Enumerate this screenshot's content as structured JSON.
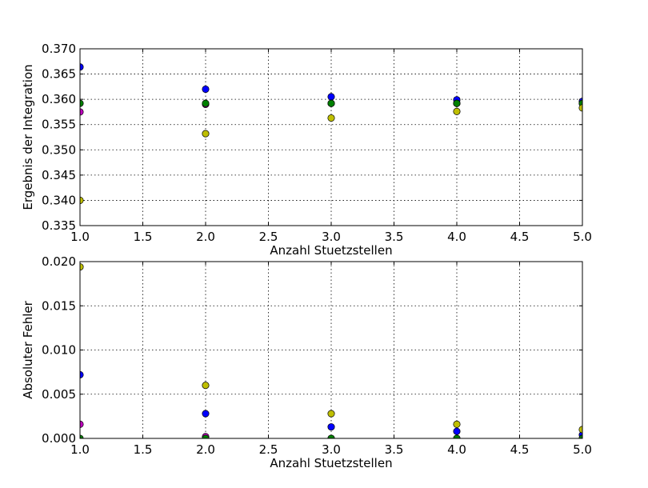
{
  "chart_data": [
    {
      "type": "scatter",
      "title": "",
      "xlabel": "Anzahl Stuetzstellen",
      "ylabel": "Ergebnis der Integration",
      "xlim": [
        1.0,
        5.0
      ],
      "ylim": [
        0.335,
        0.37
      ],
      "xticks": [
        "1.0",
        "1.5",
        "2.0",
        "2.5",
        "3.0",
        "3.5",
        "4.0",
        "4.5",
        "5.0"
      ],
      "yticks": [
        "0.335",
        "0.340",
        "0.345",
        "0.350",
        "0.355",
        "0.360",
        "0.365",
        "0.370"
      ],
      "grid": true,
      "series": [
        {
          "color": "#0000ff",
          "x": [
            1,
            2,
            3,
            4,
            5
          ],
          "y": [
            0.3664,
            0.362,
            0.3605,
            0.3599,
            0.3596
          ]
        },
        {
          "color": "#bf00bf",
          "x": [
            1,
            2,
            3,
            4,
            5
          ],
          "y": [
            0.3575,
            0.359,
            0.3592,
            0.3592,
            0.3592
          ]
        },
        {
          "color": "#008000",
          "x": [
            1,
            2,
            3,
            4,
            5
          ],
          "y": [
            0.3592,
            0.3592,
            0.3592,
            0.3592,
            0.3592
          ]
        },
        {
          "color": "#bfbf00",
          "x": [
            1,
            2,
            3,
            4,
            5
          ],
          "y": [
            0.34,
            0.3532,
            0.3563,
            0.3576,
            0.3583
          ]
        }
      ]
    },
    {
      "type": "scatter",
      "title": "",
      "xlabel": "Anzahl Stuetzstellen",
      "ylabel": "Absoluter Fehler",
      "xlim": [
        1.0,
        5.0
      ],
      "ylim": [
        0.0,
        0.02
      ],
      "xticks": [
        "1.0",
        "1.5",
        "2.0",
        "2.5",
        "3.0",
        "3.5",
        "4.0",
        "4.5",
        "5.0"
      ],
      "yticks": [
        "0.000",
        "0.005",
        "0.010",
        "0.015",
        "0.020"
      ],
      "grid": true,
      "series": [
        {
          "color": "#0000ff",
          "x": [
            1,
            2,
            3,
            4,
            5
          ],
          "y": [
            0.0072,
            0.0028,
            0.0013,
            0.0008,
            0.0004
          ]
        },
        {
          "color": "#bf00bf",
          "x": [
            1,
            2,
            3,
            4,
            5
          ],
          "y": [
            0.0016,
            0.0002,
            0.0,
            0.0,
            0.0
          ]
        },
        {
          "color": "#008000",
          "x": [
            1,
            2,
            3,
            4,
            5
          ],
          "y": [
            0.0,
            0.0,
            0.0,
            0.0,
            0.0
          ]
        },
        {
          "color": "#bfbf00",
          "x": [
            1,
            2,
            3,
            4,
            5
          ],
          "y": [
            0.0194,
            0.006,
            0.0028,
            0.0016,
            0.001
          ]
        }
      ]
    }
  ]
}
